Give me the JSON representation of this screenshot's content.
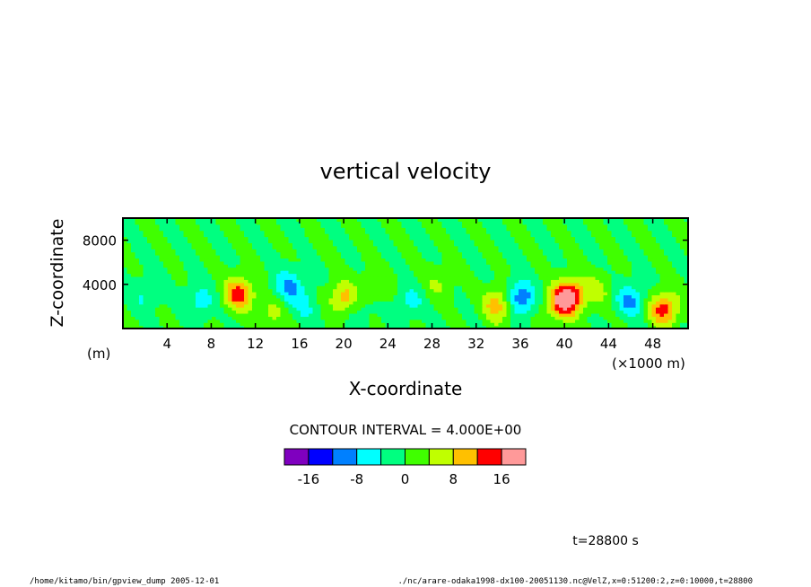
{
  "chart_data": {
    "type": "heatmap",
    "title": "vertical velocity",
    "xlabel": "X-coordinate",
    "ylabel": "Z-coordinate",
    "x_unit_label": "(m)",
    "x_scale_label": "(×1000 m)",
    "x_ticks": [
      "4",
      "8",
      "12",
      "16",
      "20",
      "24",
      "28",
      "32",
      "36",
      "40",
      "44",
      "48"
    ],
    "y_ticks": [
      "4000",
      "8000"
    ],
    "xlim": [
      0,
      51200
    ],
    "ylim": [
      0,
      10000
    ],
    "contour_interval_label": "CONTOUR INTERVAL = 4.000E+00",
    "colorbar": {
      "tick_labels": [
        "-16",
        "-8",
        "0",
        "8",
        "16"
      ],
      "tick_values": [
        -16,
        -8,
        0,
        8,
        16
      ],
      "levels": [
        -20,
        -16,
        -12,
        -8,
        -4,
        0,
        4,
        8,
        12,
        16,
        20
      ],
      "colors": [
        "#7f00bf",
        "#0000ff",
        "#0080ff",
        "#00ffff",
        "#00ff80",
        "#40ff00",
        "#c0ff00",
        "#ffc000",
        "#ff0000",
        "#ff9999"
      ]
    },
    "features": [
      {
        "x": 2,
        "z": 3000,
        "w": -4
      },
      {
        "x": 7,
        "z": 2500,
        "w": -6
      },
      {
        "x": 10.5,
        "z": 3200,
        "w": 14
      },
      {
        "x": 13.5,
        "z": 1500,
        "w": 6
      },
      {
        "x": 15,
        "z": 3800,
        "w": -9
      },
      {
        "x": 16.5,
        "z": 2000,
        "w": -4
      },
      {
        "x": 20,
        "z": 2800,
        "w": 10
      },
      {
        "x": 21.5,
        "z": 2000,
        "w": -3
      },
      {
        "x": 23,
        "z": 3800,
        "w": 4
      },
      {
        "x": 26,
        "z": 2500,
        "w": -5
      },
      {
        "x": 28.5,
        "z": 4000,
        "w": 4
      },
      {
        "x": 34,
        "z": 2200,
        "w": 11
      },
      {
        "x": 36,
        "z": 2800,
        "w": -12
      },
      {
        "x": 39.5,
        "z": 2200,
        "w": 10
      },
      {
        "x": 40.5,
        "z": 3000,
        "w": 16
      },
      {
        "x": 43,
        "z": 3500,
        "w": 5
      },
      {
        "x": 46,
        "z": 2600,
        "w": -9
      },
      {
        "x": 49,
        "z": 1800,
        "w": 14
      }
    ]
  },
  "footer": {
    "time_label": "t=28800 s",
    "left_path": "/home/kitamo/bin/gpview_dump 2005-12-01",
    "right_path": "./nc/arare-odaka1998-dx100-20051130.nc@VelZ,x=0:51200:2,z=0:10000,t=28800"
  }
}
